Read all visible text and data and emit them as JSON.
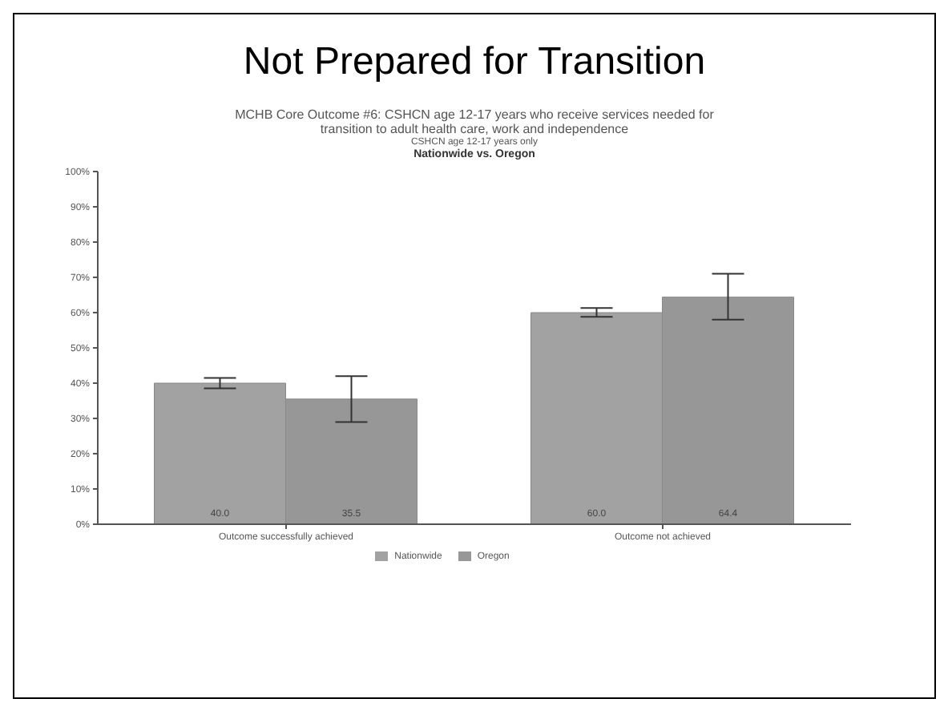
{
  "chart_data": {
    "type": "bar",
    "title": "Not Prepared for Transition",
    "subtitle": "MCHB Core Outcome #6: CSHCN age 12-17 years who receive services needed for transition to adult health care, work and independence",
    "annotations": [
      "CSHCN age 12-17 years only",
      "Nationwide vs. Oregon"
    ],
    "categories": [
      "Outcome successfully achieved",
      "Outcome not achieved"
    ],
    "series": [
      {
        "name": "Nationwide",
        "color": "#a2a2a2",
        "values": [
          40.0,
          60.0
        ],
        "errors": [
          [
            38.5,
            41.5
          ],
          [
            58.8,
            61.3
          ]
        ],
        "value_labels": [
          "40.0",
          "60.0"
        ]
      },
      {
        "name": "Oregon",
        "color": "#979797",
        "values": [
          35.5,
          64.4
        ],
        "errors": [
          [
            29,
            42
          ],
          [
            58,
            71
          ]
        ],
        "value_labels": [
          "35.5",
          "64.4"
        ]
      }
    ],
    "ylim": [
      0,
      100
    ],
    "yticks": [
      {
        "value": 0,
        "label": "0%"
      },
      {
        "value": 10,
        "label": "10%"
      },
      {
        "value": 20,
        "label": "20%"
      },
      {
        "value": 30,
        "label": "30%"
      },
      {
        "value": 40,
        "label": "40%"
      },
      {
        "value": 50,
        "label": "50%"
      },
      {
        "value": 60,
        "label": "60%"
      },
      {
        "value": 70,
        "label": "70%"
      },
      {
        "value": 80,
        "label": "80%"
      },
      {
        "value": 90,
        "label": "90%"
      },
      {
        "value": 100,
        "label": "100%"
      }
    ],
    "grid": false,
    "legend": "bottom"
  }
}
